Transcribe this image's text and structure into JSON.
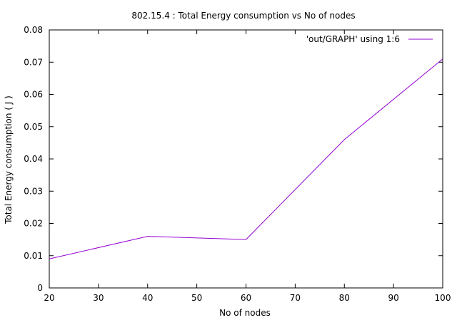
{
  "chart_data": {
    "type": "line",
    "title": "802.15.4 : Total Energy consumption vs No of nodes",
    "xlabel": "No of nodes",
    "ylabel": "Total Energy consumption ( J )",
    "xlim": [
      20,
      100
    ],
    "ylim": [
      0,
      0.08
    ],
    "x_ticks": [
      "20",
      "30",
      "40",
      "50",
      "60",
      "70",
      "80",
      "90",
      "100"
    ],
    "y_ticks": [
      "0",
      "0.01",
      "0.02",
      "0.03",
      "0.04",
      "0.05",
      "0.06",
      "0.07",
      "0.08"
    ],
    "grid": false,
    "legend_position": "top-right",
    "series": [
      {
        "name": "'out/GRAPH' using 1:6",
        "color": "#9400d3",
        "x": [
          20,
          40,
          60,
          80,
          100
        ],
        "y": [
          0.009,
          0.016,
          0.015,
          0.046,
          0.071
        ]
      }
    ]
  }
}
